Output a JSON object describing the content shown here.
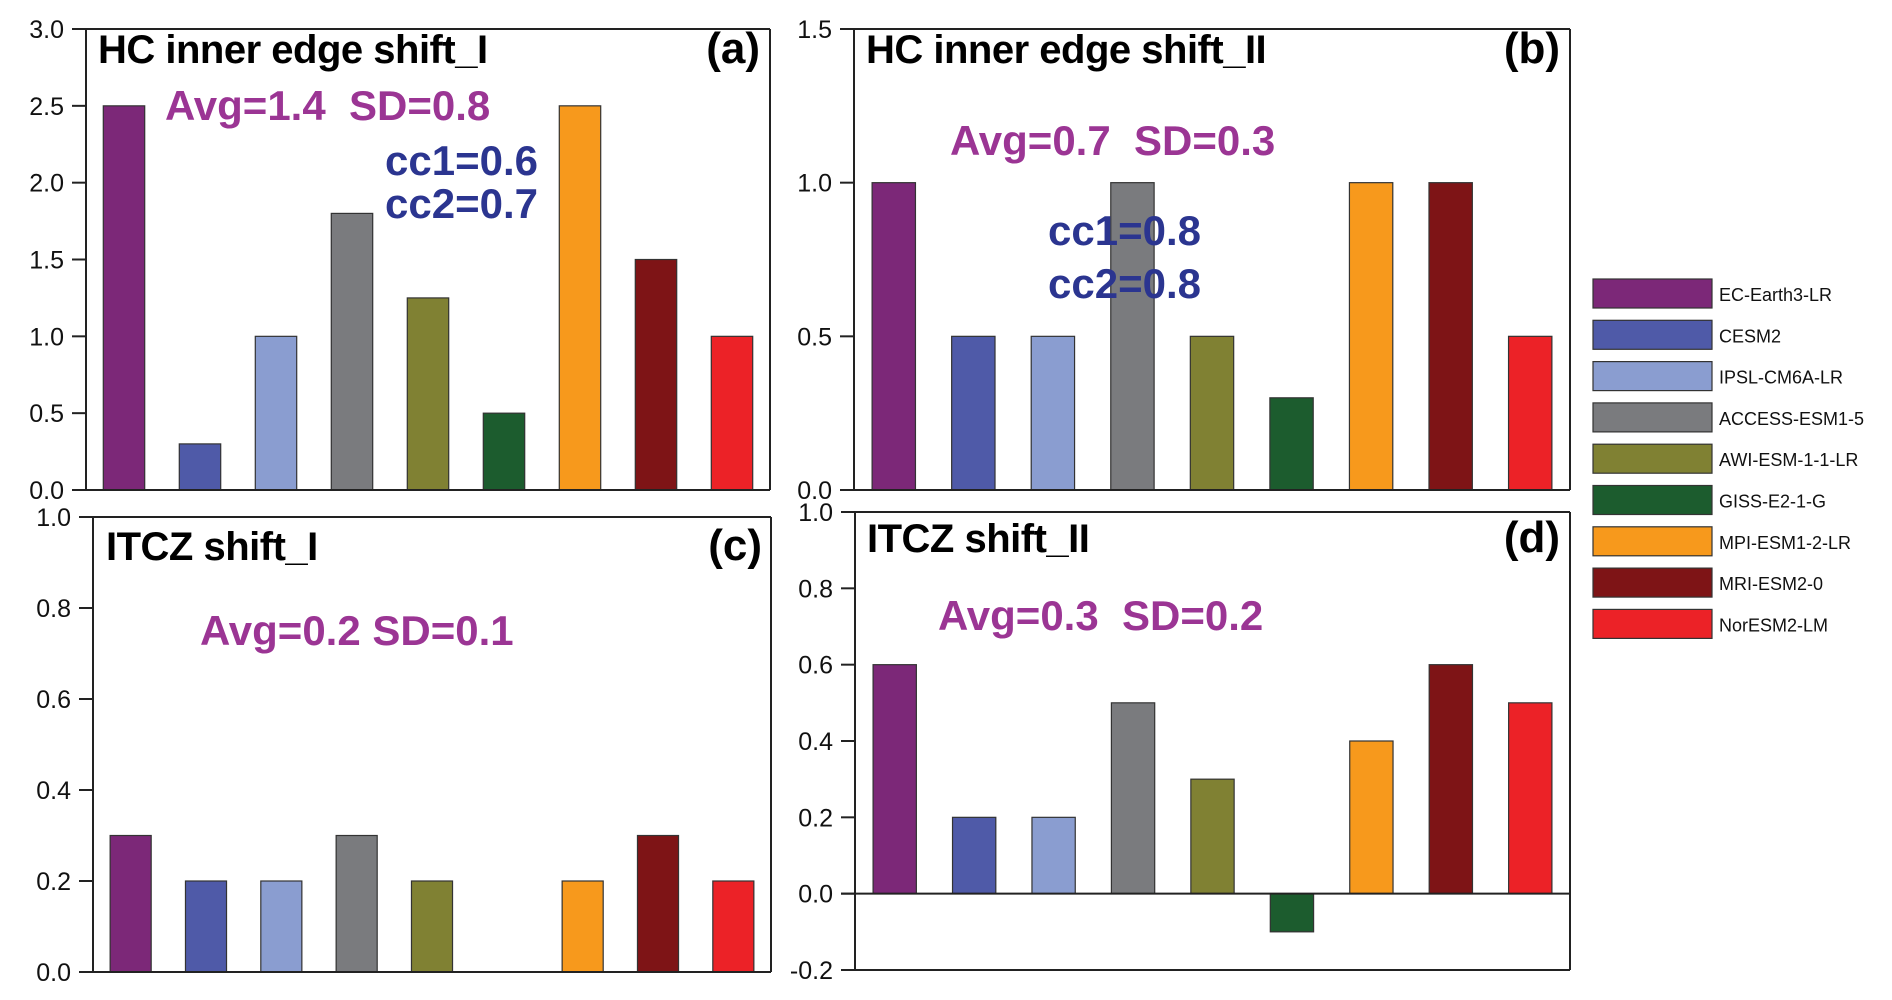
{
  "colors": {
    "avg_text": "#9b3594",
    "cc_text": "#2b3590",
    "axis": "#222222",
    "bar_stroke": "#333333"
  },
  "models": [
    {
      "name": "EC-Earth3-LR",
      "color": "#7c2878"
    },
    {
      "name": "CESM2",
      "color": "#4f5aa8"
    },
    {
      "name": "IPSL-CM6A-LR",
      "color": "#8a9dd0"
    },
    {
      "name": "ACCESS-ESM1-5",
      "color": "#7a7b7e"
    },
    {
      "name": "AWI-ESM-1-1-LR",
      "color": "#808133"
    },
    {
      "name": "GISS-E2-1-G",
      "color": "#1c5c2e"
    },
    {
      "name": "MPI-ESM1-2-LR",
      "color": "#f7991c"
    },
    {
      "name": "MRI-ESM2-0",
      "color": "#7e1416"
    },
    {
      "name": "NorESM2-LM",
      "color": "#ec2227"
    }
  ],
  "chart_data": [
    {
      "id": "a",
      "type": "bar",
      "title": "HC inner edge shift_I",
      "tag": "(a)",
      "categories": [
        "EC-Earth3-LR",
        "CESM2",
        "IPSL-CM6A-LR",
        "ACCESS-ESM1-5",
        "AWI-ESM-1-1-LR",
        "GISS-E2-1-G",
        "MPI-ESM1-2-LR",
        "MRI-ESM2-0",
        "NorESM2-LM"
      ],
      "values": [
        2.5,
        0.3,
        1.0,
        1.8,
        1.25,
        0.5,
        2.5,
        1.5,
        1.0
      ],
      "ylim": [
        0,
        3.0
      ],
      "yticks": [
        0.0,
        0.5,
        1.0,
        1.5,
        2.0,
        2.5,
        3.0
      ],
      "ytick_labels": [
        "0.0",
        "0.5",
        "1.0",
        "1.5",
        "2.0",
        "2.5",
        "3.0"
      ],
      "annotations": {
        "avg": "Avg=1.4  SD=0.8",
        "cc1": "cc1=0.6",
        "cc2": "cc2=0.7"
      },
      "xlabel": "",
      "ylabel": "",
      "grid": false
    },
    {
      "id": "b",
      "type": "bar",
      "title": "HC inner edge shift_II",
      "tag": "(b)",
      "categories": [
        "EC-Earth3-LR",
        "CESM2",
        "IPSL-CM6A-LR",
        "ACCESS-ESM1-5",
        "AWI-ESM-1-1-LR",
        "GISS-E2-1-G",
        "MPI-ESM1-2-LR",
        "MRI-ESM2-0",
        "NorESM2-LM"
      ],
      "values": [
        1.0,
        0.5,
        0.5,
        1.0,
        0.5,
        0.3,
        1.0,
        1.0,
        0.5
      ],
      "ylim": [
        0,
        1.5
      ],
      "yticks": [
        0.0,
        0.5,
        1.0,
        1.5
      ],
      "ytick_labels": [
        "0.0",
        "0.5",
        "1.0",
        "1.5"
      ],
      "annotations": {
        "avg": "Avg=0.7  SD=0.3",
        "cc1": "cc1=0.8",
        "cc2": "cc2=0.8"
      },
      "xlabel": "",
      "ylabel": "",
      "grid": false
    },
    {
      "id": "c",
      "type": "bar",
      "title": "ITCZ shift_I",
      "tag": "(c)",
      "categories": [
        "EC-Earth3-LR",
        "CESM2",
        "IPSL-CM6A-LR",
        "ACCESS-ESM1-5",
        "AWI-ESM-1-1-LR",
        "GISS-E2-1-G",
        "MPI-ESM1-2-LR",
        "MRI-ESM2-0",
        "NorESM2-LM"
      ],
      "values": [
        0.3,
        0.2,
        0.2,
        0.3,
        0.2,
        0.0,
        0.2,
        0.3,
        0.2
      ],
      "ylim": [
        0,
        1.0
      ],
      "yticks": [
        0.0,
        0.2,
        0.4,
        0.6,
        0.8,
        1.0
      ],
      "ytick_labels": [
        "0.0",
        "0.2",
        "0.4",
        "0.6",
        "0.8",
        "1.0"
      ],
      "annotations": {
        "avg": "Avg=0.2 SD=0.1"
      },
      "xlabel": "",
      "ylabel": "",
      "grid": false
    },
    {
      "id": "d",
      "type": "bar",
      "title": "ITCZ shift_II",
      "tag": "(d)",
      "categories": [
        "EC-Earth3-LR",
        "CESM2",
        "IPSL-CM6A-LR",
        "ACCESS-ESM1-5",
        "AWI-ESM-1-1-LR",
        "GISS-E2-1-G",
        "MPI-ESM1-2-LR",
        "MRI-ESM2-0",
        "NorESM2-LM"
      ],
      "values": [
        0.6,
        0.2,
        0.2,
        0.5,
        0.3,
        -0.1,
        0.4,
        0.6,
        0.5
      ],
      "ylim": [
        -0.2,
        1.0
      ],
      "yticks": [
        -0.2,
        0.0,
        0.2,
        0.4,
        0.6,
        0.8,
        1.0
      ],
      "ytick_labels": [
        "-0.2",
        "0.0",
        "0.2",
        "0.4",
        "0.6",
        "0.8",
        "1.0"
      ],
      "annotations": {
        "avg": "Avg=0.3  SD=0.2"
      },
      "xlabel": "",
      "ylabel": "",
      "grid": false
    }
  ],
  "legend": {
    "placement": "right",
    "entries": [
      "EC-Earth3-LR",
      "CESM2",
      "IPSL-CM6A-LR",
      "ACCESS-ESM1-5",
      "AWI-ESM-1-1-LR",
      "GISS-E2-1-G",
      "MPI-ESM1-2-LR",
      "MRI-ESM2-0",
      "NorESM2-LM"
    ]
  }
}
